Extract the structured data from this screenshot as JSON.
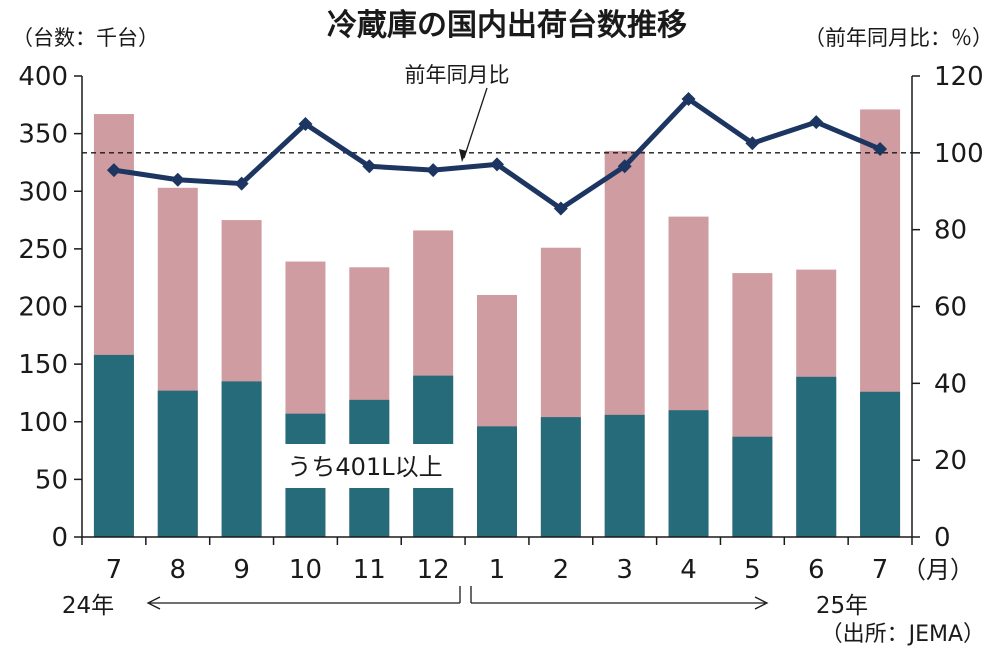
{
  "chart_data": {
    "type": "bar",
    "title": "冷蔵庫の国内出荷台数推移",
    "left_unit": "（台数：千台）",
    "right_unit": "（前年同月比：％）",
    "x_unit": "（月）",
    "source": "（出所：JEMA）",
    "categories": [
      "7",
      "8",
      "9",
      "10",
      "11",
      "12",
      "1",
      "2",
      "3",
      "4",
      "5",
      "6",
      "7"
    ],
    "year_labels": {
      "start": "24年",
      "end": "25年"
    },
    "ylim_left": [
      0,
      400
    ],
    "yticks_left": [
      0,
      50,
      100,
      150,
      200,
      250,
      300,
      350,
      400
    ],
    "ylim_right": [
      0,
      120
    ],
    "yticks_right": [
      0,
      20,
      40,
      60,
      80,
      100,
      120
    ],
    "reference_line_right": 100,
    "series": [
      {
        "name": "うち401L以上",
        "values": [
          158,
          127,
          135,
          107,
          119,
          140,
          96,
          104,
          106,
          110,
          87,
          139,
          126
        ],
        "color": "#256b79"
      },
      {
        "values": [
          367,
          303,
          275,
          239,
          234,
          266,
          210,
          251,
          335,
          278,
          229,
          232,
          371
        ],
        "color": "#cf9ca1"
      },
      {
        "name": "前年同月比",
        "axis": "right",
        "type": "line",
        "values": [
          95.5,
          93,
          92,
          107.5,
          96.5,
          95.5,
          97,
          85.5,
          96.5,
          114,
          102.5,
          108,
          101
        ],
        "color": "#1d3561"
      }
    ]
  }
}
